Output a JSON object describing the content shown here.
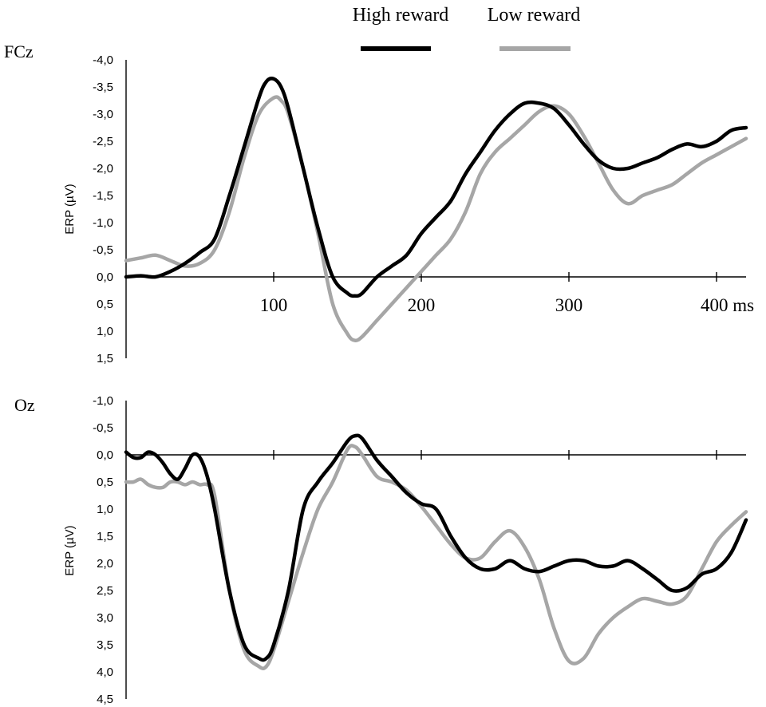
{
  "legend": [
    {
      "label": "High reward",
      "color": "#000000"
    },
    {
      "label": "Low reward",
      "color": "#a6a6a6"
    }
  ],
  "chart_data": [
    {
      "type": "line",
      "panel_label": "FCz",
      "ylabel": "ERP (µV)",
      "y_inverted": true,
      "ylim": [
        -4.0,
        1.5
      ],
      "y_ticks": [
        "-4,0",
        "-3,5",
        "-3,0",
        "-2,5",
        "-2,0",
        "-1,5",
        "-1,0",
        "-0,5",
        "0,0",
        "0,5",
        "1,0",
        "1,5"
      ],
      "xlim": [
        0,
        420
      ],
      "x_ticks": [
        {
          "value": 100,
          "label": "100"
        },
        {
          "value": 200,
          "label": "200"
        },
        {
          "value": 300,
          "label": "300"
        },
        {
          "value": 400,
          "label": "400 ms"
        }
      ],
      "series": [
        {
          "name": "High reward",
          "color": "#000000",
          "x": [
            0,
            10,
            20,
            30,
            40,
            50,
            60,
            70,
            80,
            90,
            95,
            100,
            105,
            110,
            120,
            130,
            140,
            150,
            155,
            160,
            170,
            180,
            190,
            200,
            210,
            220,
            230,
            240,
            250,
            260,
            270,
            280,
            290,
            300,
            310,
            320,
            330,
            340,
            350,
            360,
            370,
            380,
            390,
            400,
            410,
            420
          ],
          "y": [
            0.0,
            -0.02,
            0.0,
            -0.1,
            -0.25,
            -0.45,
            -0.7,
            -1.5,
            -2.4,
            -3.3,
            -3.6,
            -3.65,
            -3.5,
            -3.1,
            -2.0,
            -0.9,
            0.0,
            0.3,
            0.35,
            0.3,
            0.0,
            -0.2,
            -0.4,
            -0.8,
            -1.1,
            -1.4,
            -1.9,
            -2.3,
            -2.7,
            -3.0,
            -3.2,
            -3.2,
            -3.1,
            -2.8,
            -2.45,
            -2.15,
            -2.0,
            -2.0,
            -2.1,
            -2.2,
            -2.35,
            -2.45,
            -2.4,
            -2.5,
            -2.7,
            -2.75
          ]
        },
        {
          "name": "Low reward",
          "color": "#a6a6a6",
          "x": [
            0,
            10,
            20,
            30,
            40,
            50,
            60,
            70,
            80,
            90,
            100,
            105,
            110,
            120,
            130,
            140,
            150,
            155,
            160,
            170,
            180,
            190,
            200,
            210,
            220,
            230,
            240,
            250,
            260,
            270,
            280,
            290,
            300,
            310,
            320,
            330,
            340,
            350,
            360,
            370,
            380,
            390,
            400,
            410,
            420
          ],
          "y": [
            -0.3,
            -0.35,
            -0.4,
            -0.3,
            -0.2,
            -0.25,
            -0.5,
            -1.2,
            -2.2,
            -3.0,
            -3.3,
            -3.25,
            -3.0,
            -2.0,
            -0.8,
            0.5,
            1.05,
            1.17,
            1.1,
            0.8,
            0.5,
            0.2,
            -0.1,
            -0.4,
            -0.7,
            -1.2,
            -1.9,
            -2.3,
            -2.55,
            -2.8,
            -3.05,
            -3.15,
            -3.0,
            -2.6,
            -2.1,
            -1.6,
            -1.35,
            -1.5,
            -1.6,
            -1.7,
            -1.9,
            -2.1,
            -2.25,
            -2.4,
            -2.55
          ]
        }
      ]
    },
    {
      "type": "line",
      "panel_label": "Oz",
      "ylabel": "ERP (µV)",
      "y_inverted": true,
      "ylim": [
        -1.0,
        4.5
      ],
      "y_ticks": [
        "-1,0",
        "-0,5",
        "0,0",
        "0,5",
        "1,0",
        "1,5",
        "2,0",
        "2,5",
        "3,0",
        "3,5",
        "4,0",
        "4,5"
      ],
      "xlim": [
        0,
        420
      ],
      "x_ticks": [
        {
          "value": 100
        },
        {
          "value": 200
        },
        {
          "value": 300
        },
        {
          "value": 400
        }
      ],
      "series": [
        {
          "name": "High reward",
          "color": "#000000",
          "x": [
            0,
            5,
            10,
            15,
            20,
            25,
            30,
            35,
            40,
            45,
            50,
            55,
            60,
            70,
            80,
            90,
            95,
            100,
            110,
            120,
            130,
            140,
            150,
            155,
            160,
            170,
            180,
            190,
            200,
            210,
            220,
            230,
            240,
            250,
            260,
            270,
            280,
            290,
            300,
            310,
            320,
            330,
            340,
            350,
            360,
            370,
            380,
            390,
            400,
            410,
            420
          ],
          "y": [
            -0.05,
            0.05,
            0.05,
            -0.05,
            0.0,
            0.15,
            0.35,
            0.45,
            0.25,
            0.0,
            0.05,
            0.4,
            1.0,
            2.5,
            3.5,
            3.75,
            3.75,
            3.5,
            2.5,
            1.0,
            0.5,
            0.15,
            -0.25,
            -0.35,
            -0.3,
            0.1,
            0.4,
            0.7,
            0.9,
            1.0,
            1.5,
            1.9,
            2.1,
            2.1,
            1.95,
            2.1,
            2.15,
            2.05,
            1.95,
            1.95,
            2.05,
            2.05,
            1.95,
            2.1,
            2.3,
            2.5,
            2.45,
            2.2,
            2.1,
            1.8,
            1.2
          ]
        },
        {
          "name": "Low reward",
          "color": "#a6a6a6",
          "x": [
            0,
            5,
            10,
            15,
            20,
            25,
            30,
            35,
            40,
            45,
            50,
            55,
            60,
            70,
            80,
            90,
            95,
            100,
            110,
            120,
            130,
            140,
            150,
            155,
            160,
            170,
            180,
            190,
            200,
            210,
            220,
            230,
            240,
            250,
            260,
            270,
            280,
            290,
            300,
            310,
            320,
            330,
            340,
            350,
            360,
            370,
            380,
            390,
            400,
            410,
            420
          ],
          "y": [
            0.5,
            0.5,
            0.45,
            0.55,
            0.6,
            0.6,
            0.5,
            0.5,
            0.55,
            0.5,
            0.55,
            0.55,
            0.75,
            2.5,
            3.6,
            3.9,
            3.9,
            3.6,
            2.7,
            1.8,
            1.0,
            0.5,
            -0.1,
            -0.15,
            0.0,
            0.4,
            0.5,
            0.65,
            0.95,
            1.3,
            1.65,
            1.9,
            1.9,
            1.6,
            1.4,
            1.7,
            2.3,
            3.2,
            3.8,
            3.75,
            3.3,
            3.0,
            2.8,
            2.65,
            2.7,
            2.75,
            2.6,
            2.1,
            1.6,
            1.3,
            1.05
          ]
        }
      ]
    }
  ]
}
